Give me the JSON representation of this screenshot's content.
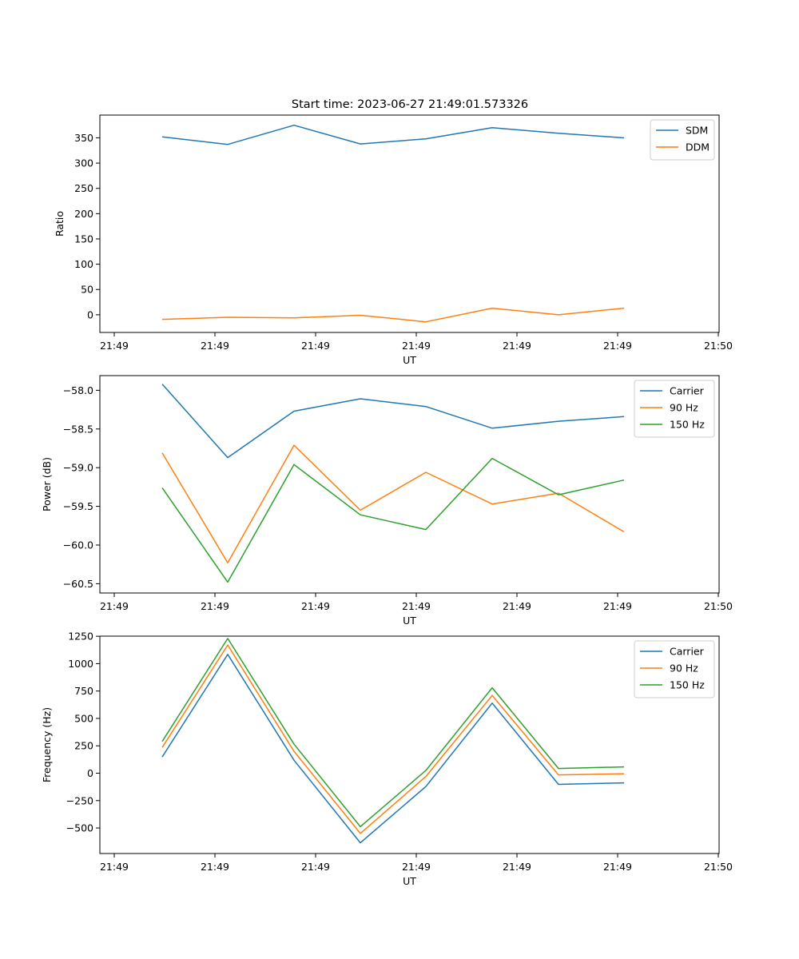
{
  "title": "Start time: 2023-06-27 21:49:01.573326",
  "chart_data": [
    {
      "type": "line",
      "xlabel": "UT",
      "ylabel": "Ratio",
      "x_tick_labels": [
        "21:49",
        "21:49",
        "21:49",
        "21:49",
        "21:49",
        "21:49",
        "21:50"
      ],
      "ylim": [
        -35,
        395
      ],
      "y_ticks": [
        "0",
        "50",
        "100",
        "150",
        "200",
        "250",
        "300",
        "350"
      ],
      "legend": "top-right",
      "series": [
        {
          "name": "SDM",
          "color": "#1f77b4",
          "values": [
            352,
            337,
            375,
            338,
            348,
            370,
            359,
            350
          ]
        },
        {
          "name": "DDM",
          "color": "#ff7f0e",
          "values": [
            -9,
            -5,
            -6,
            -1,
            -14,
            13,
            0,
            13
          ]
        }
      ]
    },
    {
      "type": "line",
      "xlabel": "UT",
      "ylabel": "Power (dB)",
      "x_tick_labels": [
        "21:49",
        "21:49",
        "21:49",
        "21:49",
        "21:49",
        "21:49",
        "21:50"
      ],
      "ylim": [
        -60.62,
        -57.81
      ],
      "y_ticks": [
        "−60.5",
        "−60.0",
        "−59.5",
        "−59.0",
        "−58.5",
        "−58.0"
      ],
      "legend": "top-right",
      "series": [
        {
          "name": "Carrier",
          "color": "#1f77b4",
          "values": [
            -57.92,
            -58.87,
            -58.27,
            -58.11,
            -58.21,
            -58.49,
            -58.4,
            -58.34
          ]
        },
        {
          "name": "90 Hz",
          "color": "#ff7f0e",
          "values": [
            -58.81,
            -60.23,
            -58.71,
            -59.55,
            -59.06,
            -59.47,
            -59.33,
            -59.83
          ]
        },
        {
          "name": "150 Hz",
          "color": "#2ca02c",
          "values": [
            -59.26,
            -60.48,
            -58.96,
            -59.61,
            -59.8,
            -58.88,
            -59.35,
            -59.16
          ]
        }
      ]
    },
    {
      "type": "line",
      "xlabel": "UT",
      "ylabel": "Frequency (Hz)",
      "x_tick_labels": [
        "21:49",
        "21:49",
        "21:49",
        "21:49",
        "21:49",
        "21:49",
        "21:50"
      ],
      "ylim": [
        -733,
        1251
      ],
      "y_ticks": [
        "−500",
        "−250",
        "0",
        "250",
        "500",
        "750",
        "1000",
        "1250"
      ],
      "legend": "top-right",
      "series": [
        {
          "name": "Carrier",
          "color": "#1f77b4",
          "values": [
            148,
            1085,
            118,
            -635,
            -122,
            640,
            -102,
            -88
          ]
        },
        {
          "name": "90 Hz",
          "color": "#ff7f0e",
          "values": [
            235,
            1170,
            200,
            -550,
            -30,
            710,
            -15,
            -5
          ]
        },
        {
          "name": "150 Hz",
          "color": "#2ca02c",
          "values": [
            290,
            1230,
            265,
            -488,
            25,
            780,
            43,
            58
          ]
        }
      ]
    }
  ]
}
